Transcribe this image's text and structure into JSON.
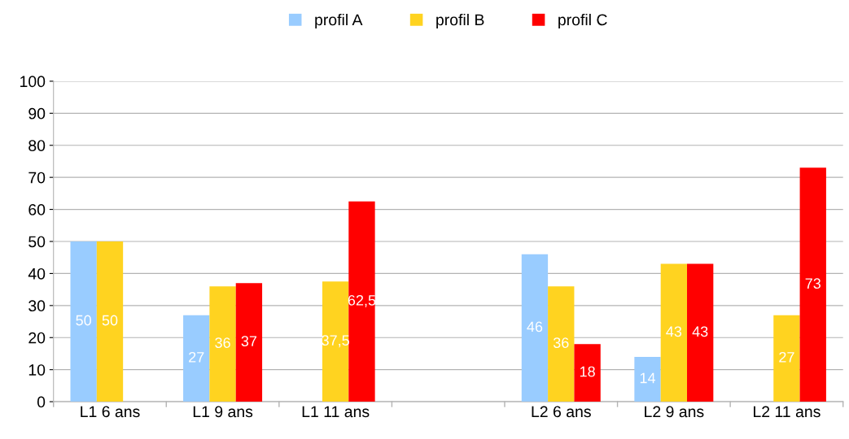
{
  "chart_data": {
    "type": "bar",
    "categories": [
      "L1 6 ans",
      "L1 9 ans",
      "L1 11 ans",
      null,
      "L2 6 ans",
      "L2 9 ans",
      "L2 11 ans"
    ],
    "series": [
      {
        "name": "profil A",
        "color": "#99ccff",
        "values": [
          50,
          27,
          null,
          null,
          46,
          14,
          null
        ],
        "value_labels": [
          "50",
          "27",
          null,
          null,
          "46",
          "14",
          null
        ]
      },
      {
        "name": "profil B",
        "color": "#ffd320",
        "values": [
          50,
          36,
          37.5,
          null,
          36,
          43,
          27
        ],
        "value_labels": [
          "50",
          "36",
          "37,5",
          null,
          "36",
          "43",
          "27"
        ]
      },
      {
        "name": "profil C",
        "color": "#ff0000",
        "values": [
          null,
          37,
          62.5,
          null,
          18,
          43,
          73
        ],
        "value_labels": [
          null,
          "37",
          "62,5",
          null,
          "18",
          "43",
          "73"
        ]
      }
    ],
    "ylim": [
      0,
      100
    ],
    "yticks": [
      0,
      10,
      20,
      30,
      40,
      50,
      60,
      70,
      80,
      90,
      100
    ],
    "grid": "y",
    "legend": "top"
  }
}
